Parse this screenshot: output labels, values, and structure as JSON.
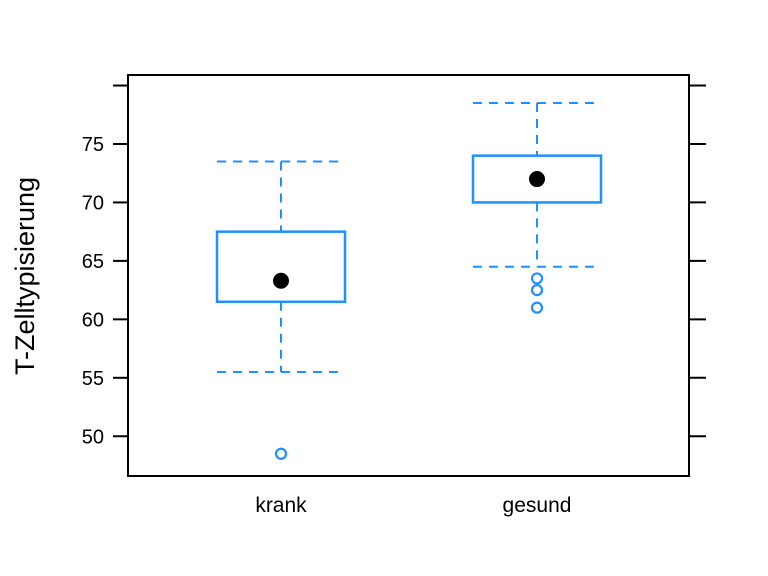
{
  "chart_data": {
    "type": "boxplot",
    "title": "",
    "xlabel": "",
    "ylabel": "T-Zelltypisierung",
    "categories": [
      "krank",
      "gesund"
    ],
    "series": [
      {
        "name": "krank",
        "whisker_low": 55.5,
        "q1": 61.5,
        "mean": 63.3,
        "q3": 67.5,
        "whisker_high": 73.5,
        "outliers": [
          48.5
        ],
        "median_line_shown": false
      },
      {
        "name": "gesund",
        "whisker_low": 64.5,
        "q1": 70,
        "mean": 72,
        "q3": 74,
        "whisker_high": 78.5,
        "outliers": [
          63.5,
          62.5,
          61
        ],
        "median_line_shown": false
      }
    ],
    "y_axis": {
      "tick_values": [
        50,
        55,
        60,
        65,
        70,
        75
      ],
      "tick_labels": [
        "50",
        "55",
        "60",
        "65",
        "70",
        "75"
      ],
      "unlabeled_tick_values": [
        80
      ],
      "range": [
        46.6,
        80.9
      ],
      "right_ticks_mirrored": true,
      "grid": false
    },
    "x_axis": {
      "tick_marks_shown": false
    },
    "legend": null,
    "style": {
      "box_color": "#1E90FF",
      "box_fill": "#ffffff",
      "mean_dot_color": "#000000",
      "outlier_color": "#1E90FF",
      "whisker_style": "dashed",
      "axis_color": "#000000",
      "background": "#ffffff"
    }
  }
}
